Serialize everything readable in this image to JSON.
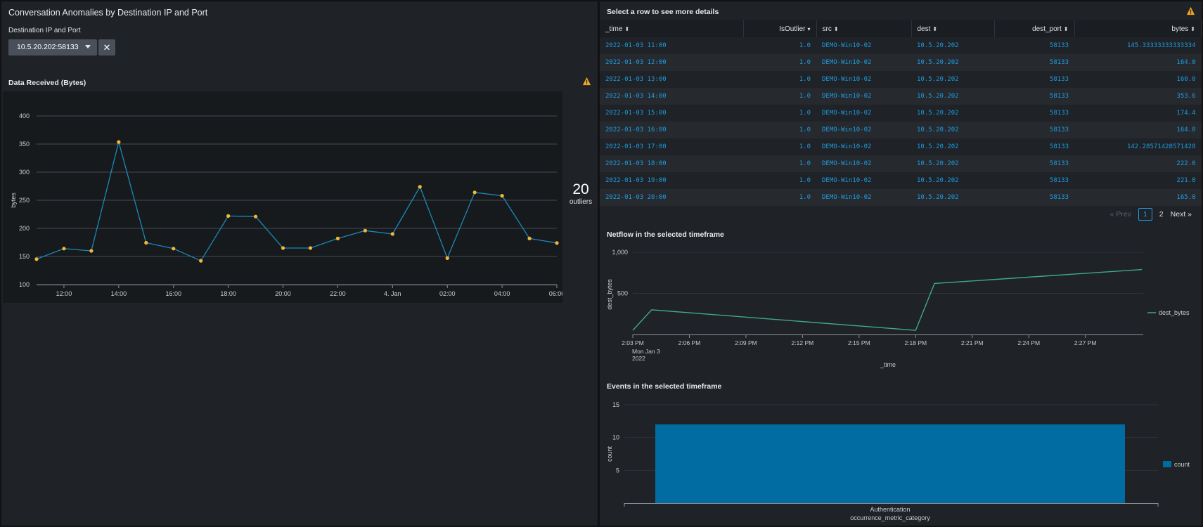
{
  "dashboard": {
    "title": "Conversation Anomalies by Destination IP and Port",
    "input_label": "Destination IP and Port",
    "input_value": "10.5.20.202:58133",
    "clear_symbol": "✕"
  },
  "chart1": {
    "title": "Data Received (Bytes)",
    "outlier_count": "20",
    "outlier_label": "outliers"
  },
  "chart1_data": {
    "type": "line",
    "ylabel": "bytes",
    "ylim": [
      100,
      400
    ],
    "yticks": [
      "100",
      "150",
      "200",
      "250",
      "300",
      "350",
      "400"
    ],
    "xticks": [
      "12:00",
      "14:00",
      "16:00",
      "18:00",
      "20:00",
      "22:00",
      "4. Jan",
      "02:00",
      "04:00",
      "06:00"
    ],
    "series": [
      {
        "x": [
          "11:00",
          "12:00",
          "13:00",
          "14:00",
          "15:00",
          "16:00",
          "17:00",
          "18:00",
          "19:00",
          "20:00",
          "21:00",
          "22:00",
          "23:00",
          "00:00",
          "01:00",
          "02:00",
          "03:00",
          "04:00",
          "05:00",
          "06:00"
        ],
        "values": [
          145.3,
          164,
          160,
          353.6,
          174.4,
          164,
          142.3,
          222,
          221,
          165,
          165,
          182,
          196,
          190,
          274,
          147,
          264,
          258,
          182,
          174
        ]
      }
    ],
    "line_color": "#1a88b8",
    "marker_color": "#f5b731"
  },
  "table": {
    "title": "Select a row to see more details",
    "columns": [
      {
        "label": "_time",
        "caret": "⬍"
      },
      {
        "label": "IsOutlier",
        "caret": "▾"
      },
      {
        "label": "src",
        "caret": "⬍"
      },
      {
        "label": "dest",
        "caret": "⬍"
      },
      {
        "label": "dest_port",
        "caret": "⬍"
      },
      {
        "label": "bytes",
        "caret": "⬍"
      }
    ],
    "rows": [
      [
        "2022-01-03 11:00",
        "1.0",
        "DEMO-Win10-02",
        "10.5.20.202",
        "58133",
        "145.33333333333334"
      ],
      [
        "2022-01-03 12:00",
        "1.0",
        "DEMO-Win10-02",
        "10.5.20.202",
        "58133",
        "164.0"
      ],
      [
        "2022-01-03 13:00",
        "1.0",
        "DEMO-Win10-02",
        "10.5.20.202",
        "58133",
        "160.0"
      ],
      [
        "2022-01-03 14:00",
        "1.0",
        "DEMO-Win10-02",
        "10.5.20.202",
        "58133",
        "353.6"
      ],
      [
        "2022-01-03 15:00",
        "1.0",
        "DEMO-Win10-02",
        "10.5.20.202",
        "58133",
        "174.4"
      ],
      [
        "2022-01-03 16:00",
        "1.0",
        "DEMO-Win10-02",
        "10.5.20.202",
        "58133",
        "164.0"
      ],
      [
        "2022-01-03 17:00",
        "1.0",
        "DEMO-Win10-02",
        "10.5.20.202",
        "58133",
        "142.28571428571428"
      ],
      [
        "2022-01-03 18:00",
        "1.0",
        "DEMO-Win10-02",
        "10.5.20.202",
        "58133",
        "222.0"
      ],
      [
        "2022-01-03 19:00",
        "1.0",
        "DEMO-Win10-02",
        "10.5.20.202",
        "58133",
        "221.0"
      ],
      [
        "2022-01-03 20:00",
        "1.0",
        "DEMO-Win10-02",
        "10.5.20.202",
        "58133",
        "165.0"
      ]
    ],
    "pagination": {
      "prev": "« Prev",
      "page1": "1",
      "page2": "2",
      "next": "Next »"
    }
  },
  "netflow": {
    "title": "Netflow in the selected timeframe"
  },
  "netflow_data": {
    "type": "line",
    "xlabel": "_time",
    "ylabel": "dest_bytes",
    "yticks": [
      "500",
      "1,000"
    ],
    "xticks": [
      "2:03 PM",
      "2:06 PM",
      "2:09 PM",
      "2:12 PM",
      "2:15 PM",
      "2:18 PM",
      "2:21 PM",
      "2:24 PM",
      "2:27 PM"
    ],
    "xticks_sub": [
      "Mon Jan 3",
      "2022"
    ],
    "series": [
      {
        "name": "dest_bytes",
        "x": [
          "2:03 PM",
          "2:04 PM",
          "2:18 PM",
          "2:19 PM",
          "2:30 PM"
        ],
        "values": [
          50,
          300,
          50,
          620,
          790
        ]
      }
    ],
    "line_color": "#3fa889"
  },
  "events": {
    "title": "Events in the selected timeframe"
  },
  "events_data": {
    "type": "bar",
    "xlabel": "occurrence_metric_category",
    "ylabel": "count",
    "yticks": [
      "5",
      "10",
      "15"
    ],
    "ylim": [
      0,
      15
    ],
    "categories": [
      "Authentication"
    ],
    "series": [
      {
        "name": "count",
        "values": [
          12
        ]
      }
    ],
    "bar_color": "#006ca1"
  },
  "colors": {
    "warning": "#f5a623"
  },
  "icons": {
    "warning": "warning-icon",
    "caret": "chevron-down-icon",
    "clear": "close-icon"
  }
}
